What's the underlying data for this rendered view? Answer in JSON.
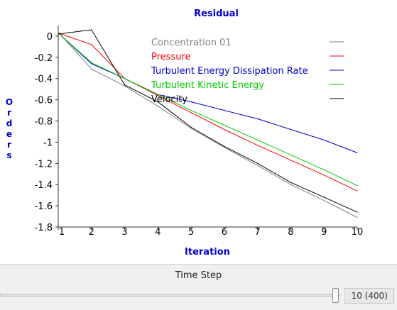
{
  "chart_data": {
    "type": "line",
    "title": "Residual",
    "xlabel": "Iteration",
    "ylabel": "Orders",
    "x": [
      1,
      2,
      3,
      4,
      5,
      6,
      7,
      8,
      9,
      10
    ],
    "xlim": [
      1,
      10
    ],
    "ylim": [
      -1.8,
      0.1
    ],
    "x_ticks": [
      1,
      2,
      3,
      4,
      5,
      6,
      7,
      8,
      9,
      10
    ],
    "y_ticks": [
      0,
      -0.2,
      -0.4,
      -0.6,
      -0.8,
      -1,
      -1.2,
      -1.4,
      -1.6,
      -1.8
    ],
    "y_tick_labels": [
      "0",
      "-0.2",
      "-0.4",
      "-0.6",
      "-0.8",
      "-1",
      "-1.2",
      "-1.4",
      "-1.6",
      "-1.8"
    ],
    "grid": false,
    "legend_position": "top-right",
    "series": [
      {
        "name": "Concentration 01",
        "color": "#808080",
        "values": [
          0.04,
          -0.31,
          -0.47,
          -0.66,
          -0.87,
          -1.05,
          -1.22,
          -1.4,
          -1.55,
          -1.71
        ]
      },
      {
        "name": "Pressure",
        "color": "#ff0000",
        "values": [
          0.03,
          -0.08,
          -0.4,
          -0.56,
          -0.72,
          -0.88,
          -1.03,
          -1.17,
          -1.31,
          -1.46
        ]
      },
      {
        "name": "Turbulent Energy Dissipation Rate",
        "color": "#0000cc",
        "values": [
          0.03,
          -0.26,
          -0.4,
          -0.55,
          -0.62,
          -0.7,
          -0.78,
          -0.88,
          -0.98,
          -1.1
        ]
      },
      {
        "name": "Turbulent Kinetic Energy",
        "color": "#00d000",
        "values": [
          0.03,
          -0.25,
          -0.4,
          -0.55,
          -0.7,
          -0.84,
          -0.98,
          -1.12,
          -1.26,
          -1.41
        ]
      },
      {
        "name": "Velocity",
        "color": "#000000",
        "values": [
          0.02,
          0.06,
          -0.46,
          -0.62,
          -0.86,
          -1.04,
          -1.2,
          -1.38,
          -1.52,
          -1.66
        ]
      }
    ]
  },
  "footer": {
    "label": "Time Step",
    "slider_fraction": 1.0,
    "value_text": "10 (400)"
  }
}
